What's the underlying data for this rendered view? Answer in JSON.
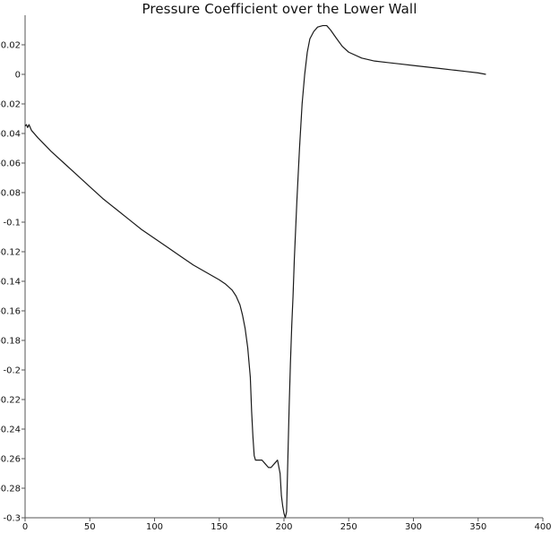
{
  "chart_data": {
    "type": "line",
    "title": "Pressure Coefficient over the Lower Wall",
    "xlabel": "",
    "ylabel": "",
    "xlim": [
      0,
      400
    ],
    "ylim": [
      -0.3,
      0.04
    ],
    "xticks": [
      "0",
      "50",
      "100",
      "150",
      "200",
      "250",
      "300",
      "350",
      "400"
    ],
    "yticks": [
      "0.02",
      "0",
      "-0.02",
      "-0.04",
      "-0.06",
      "-0.08",
      "-0.1",
      "-0.12",
      "-0.14",
      "-0.16",
      "-0.18",
      "-0.2",
      "-0.22",
      "-0.24",
      "-0.26",
      "-0.28",
      "-0.3"
    ],
    "grid": false,
    "series": [
      {
        "x": [
          0,
          1,
          2,
          3,
          5,
          10,
          20,
          30,
          40,
          50,
          60,
          70,
          80,
          90,
          100,
          110,
          120,
          130,
          140,
          150,
          155,
          160,
          163,
          166,
          168,
          170,
          172,
          174,
          175,
          176,
          177,
          178,
          180,
          183,
          185,
          188,
          190,
          193,
          195,
          197,
          198,
          199,
          200,
          201,
          202,
          203,
          204,
          205,
          206,
          207,
          208,
          210,
          212,
          214,
          216,
          218,
          220,
          223,
          226,
          230,
          233,
          236,
          240,
          245,
          250,
          260,
          270,
          280,
          290,
          300,
          310,
          320,
          330,
          340,
          350,
          356
        ],
        "y": [
          -0.035,
          -0.034,
          -0.036,
          -0.034,
          -0.038,
          -0.043,
          -0.052,
          -0.06,
          -0.068,
          -0.076,
          -0.084,
          -0.091,
          -0.098,
          -0.105,
          -0.111,
          -0.117,
          -0.123,
          -0.129,
          -0.134,
          -0.139,
          -0.142,
          -0.146,
          -0.15,
          -0.156,
          -0.163,
          -0.172,
          -0.185,
          -0.205,
          -0.228,
          -0.245,
          -0.258,
          -0.261,
          -0.261,
          -0.261,
          -0.263,
          -0.266,
          -0.266,
          -0.263,
          -0.261,
          -0.27,
          -0.285,
          -0.292,
          -0.297,
          -0.3,
          -0.296,
          -0.26,
          -0.225,
          -0.195,
          -0.17,
          -0.15,
          -0.125,
          -0.085,
          -0.05,
          -0.02,
          0.0,
          0.015,
          0.024,
          0.029,
          0.032,
          0.033,
          0.033,
          0.03,
          0.025,
          0.019,
          0.015,
          0.011,
          0.009,
          0.008,
          0.007,
          0.006,
          0.005,
          0.004,
          0.003,
          0.002,
          0.001,
          0.0
        ]
      }
    ]
  }
}
